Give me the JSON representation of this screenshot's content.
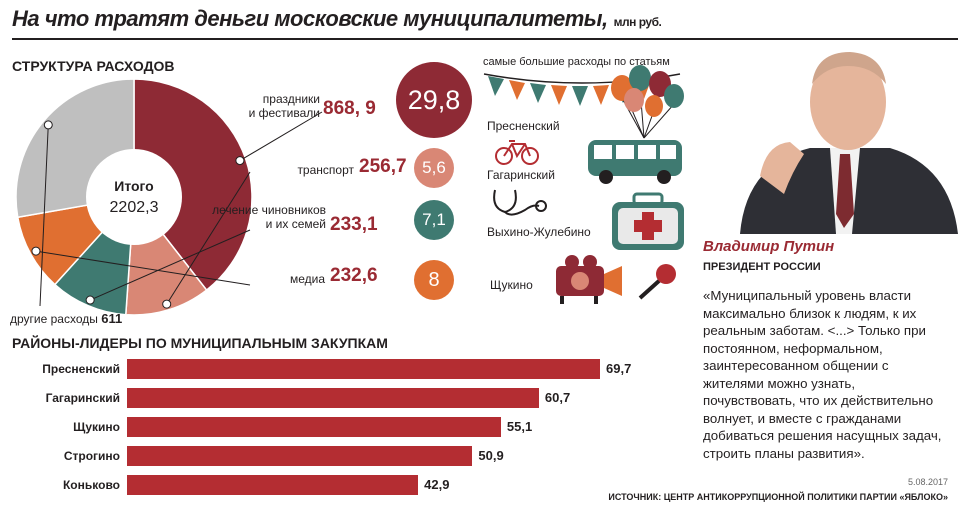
{
  "header": {
    "title": "На что тратят деньги московские муниципалитеты,",
    "unit": "млн руб."
  },
  "structure": {
    "heading": "СТРУКТУРА РАСХОДОВ",
    "total_label": "Итого",
    "total_value": "2202,3",
    "items": [
      {
        "label_line1": "праздники",
        "label_line2": "и фестивали",
        "value": "868, 9",
        "color": "#8e2a35"
      },
      {
        "label_line1": "",
        "label_line2": "транспорт",
        "value": "256,7",
        "color": "#d98775"
      },
      {
        "label_line1": "лечение чиновников",
        "label_line2": "и их семей",
        "value": "233,1",
        "color": "#3f7a71"
      },
      {
        "label_line1": "",
        "label_line2": "медиа",
        "value": "232,6",
        "color": "#e06f31"
      },
      {
        "label_line1": "",
        "label_line2": "другие расходы",
        "value": "611",
        "color": "#bfbfbf"
      }
    ]
  },
  "biggest": {
    "heading": "самые большие расходы по статьям",
    "items": [
      {
        "value": "29,8",
        "district": "Пресненский",
        "color": "#8e2a35",
        "icon": "balloons-icon"
      },
      {
        "value": "5,6",
        "district": "Гагаринский",
        "color": "#d98775",
        "icon": "bicycle-icon"
      },
      {
        "value": "7,1",
        "district": "Выхино-Жулебино",
        "color": "#3f7a71",
        "icon": "stethoscope-icon"
      },
      {
        "value": "8",
        "district": "Щукино",
        "color": "#e06f31",
        "icon": "video-camera-icon"
      }
    ]
  },
  "procurement": {
    "heading": "РАЙОНЫ-ЛИДЕРЫ ПО МУНИЦИПАЛЬНЫМ ЗАКУПКАМ",
    "bar_color": "#b42d32"
  },
  "quote": {
    "name": "Владимир Путин",
    "role": "ПРЕЗИДЕНТ РОССИИ",
    "text": "«Муниципальный уровень власти максимально близок к людям, к их реальным заботам. <...> Только при постоянном, неформальном, заинтересованном общении с жителями можно узнать, почувствовать, что их действительно волнует, и вместе с гражданами добиваться решения насущных задач, строить планы развития».",
    "date": "5.08.2017",
    "photo_icon": "portrait-photo"
  },
  "source": "ИСТОЧНИК: ЦЕНТР АНТИКОРРУПЦИОННОЙ ПОЛИТИКИ ПАРТИИ «ЯБЛОКО»",
  "chart_data": [
    {
      "type": "pie",
      "title": "СТРУКТУРА РАСХОДОВ",
      "categories": [
        "праздники и фестивали",
        "транспорт",
        "лечение чиновников и их семей",
        "медиа",
        "другие расходы"
      ],
      "values": [
        868.9,
        256.7,
        233.1,
        232.6,
        611
      ],
      "colors": [
        "#8e2a35",
        "#d98775",
        "#3f7a71",
        "#e06f31",
        "#bfbfbf"
      ]
    },
    {
      "type": "bar",
      "orientation": "horizontal",
      "title": "РАЙОНЫ-ЛИДЕРЫ ПО МУНИЦИПАЛЬНЫМ ЗАКУПКАМ",
      "categories": [
        "Пресненский",
        "Гагаринский",
        "Щукино",
        "Строгино",
        "Коньково"
      ],
      "values": [
        69.7,
        60.7,
        55.1,
        50.9,
        42.9
      ],
      "value_labels": [
        "69,7",
        "60,7",
        "55,1",
        "50,9",
        "42,9"
      ],
      "xlim": [
        0,
        69.7
      ]
    }
  ]
}
